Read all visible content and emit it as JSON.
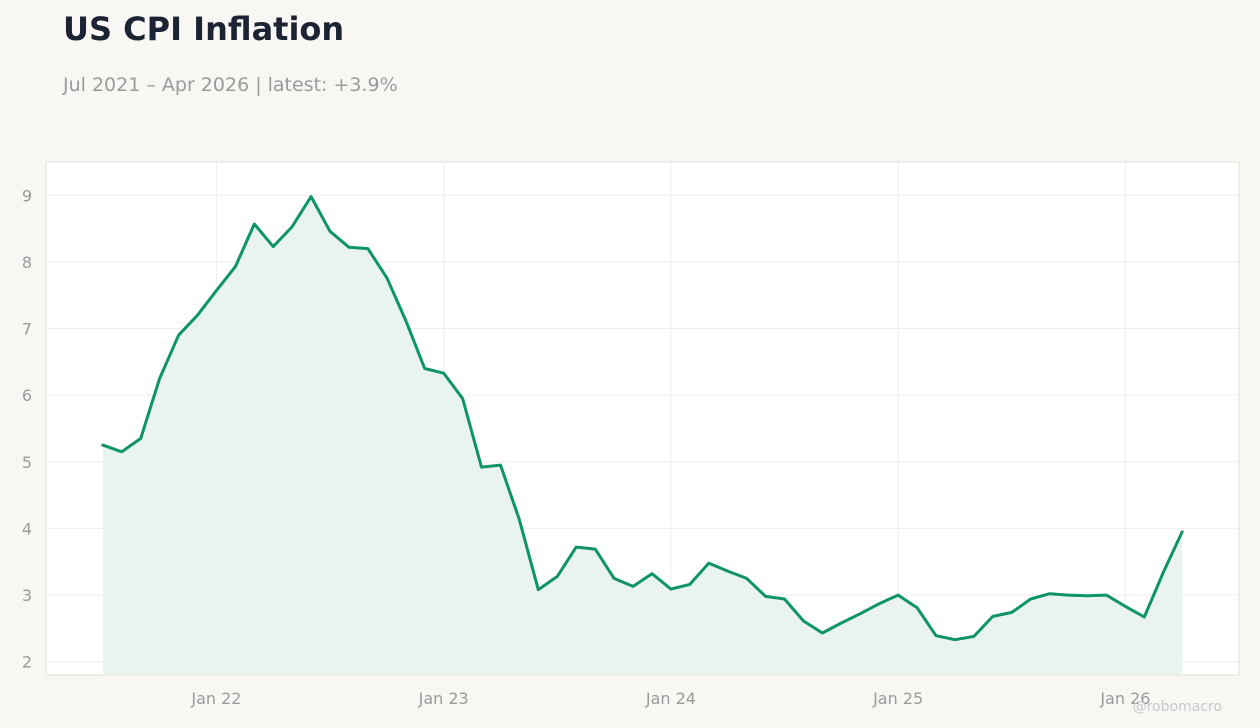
{
  "header": {
    "title": "US CPI Inflation",
    "subtitle": "Jul 2021 – Apr 2026 | latest: +3.9%"
  },
  "watermark": "@robomacro",
  "colors": {
    "line": "#0e9466",
    "area": "#e9f4ef",
    "background": "#f8f7f4",
    "plot_background": "#ffffff",
    "grid": "#eeeeee",
    "tick_text": "#9a9a9a",
    "title": "#1c2433"
  },
  "chart_data": {
    "type": "area",
    "title": "US CPI Inflation",
    "subtitle": "Jul 2021 – Apr 2026 | latest: +3.9%",
    "xlabel": "",
    "ylabel": "",
    "grid": true,
    "y_ticks": [
      2,
      3,
      4,
      5,
      6,
      7,
      8,
      9
    ],
    "x_ticks": [
      {
        "label": "Jan 22",
        "date": "2022-01"
      },
      {
        "label": "Jan 23",
        "date": "2023-01"
      },
      {
        "label": "Jan 24",
        "date": "2024-01"
      },
      {
        "label": "Jan 25",
        "date": "2025-01"
      },
      {
        "label": "Jan 26",
        "date": "2026-01"
      }
    ],
    "xlim": [
      "2021-04",
      "2026-07"
    ],
    "ylim": [
      1.8,
      9.5
    ],
    "series": [
      {
        "x": [
          "2021-07",
          "2021-08",
          "2021-09",
          "2021-10",
          "2021-11",
          "2021-12",
          "2022-01",
          "2022-02",
          "2022-03",
          "2022-04",
          "2022-05",
          "2022-06",
          "2022-07",
          "2022-08",
          "2022-09",
          "2022-10",
          "2022-11",
          "2022-12",
          "2023-01",
          "2023-02",
          "2023-03",
          "2023-04",
          "2023-05",
          "2023-06",
          "2023-07",
          "2023-08",
          "2023-09",
          "2023-10",
          "2023-11",
          "2023-12",
          "2024-01",
          "2024-02",
          "2024-03",
          "2024-04",
          "2024-05",
          "2024-06",
          "2024-07",
          "2024-08",
          "2024-09",
          "2024-10",
          "2024-11",
          "2024-12",
          "2025-01",
          "2025-02",
          "2025-03",
          "2025-04",
          "2025-05",
          "2025-06",
          "2025-07",
          "2025-08",
          "2025-09",
          "2025-10",
          "2025-11",
          "2025-12",
          "2026-01",
          "2026-02",
          "2026-03",
          "2026-04"
        ],
        "values": [
          5.25,
          5.15,
          5.35,
          6.25,
          6.9,
          7.2,
          7.57,
          7.93,
          8.57,
          8.23,
          8.53,
          8.98,
          8.46,
          8.22,
          8.2,
          7.76,
          7.12,
          6.4,
          6.33,
          5.95,
          4.92,
          4.95,
          4.13,
          3.08,
          3.28,
          3.72,
          3.69,
          3.25,
          3.13,
          3.32,
          3.09,
          3.16,
          3.48,
          3.36,
          3.25,
          2.98,
          2.94,
          2.61,
          2.43,
          2.58,
          2.72,
          2.87,
          3.0,
          2.81,
          2.39,
          2.33,
          2.38,
          2.68,
          2.74,
          2.94,
          3.02,
          3.0,
          2.99,
          3.0,
          2.83,
          2.67,
          3.34,
          3.95
        ]
      }
    ]
  }
}
